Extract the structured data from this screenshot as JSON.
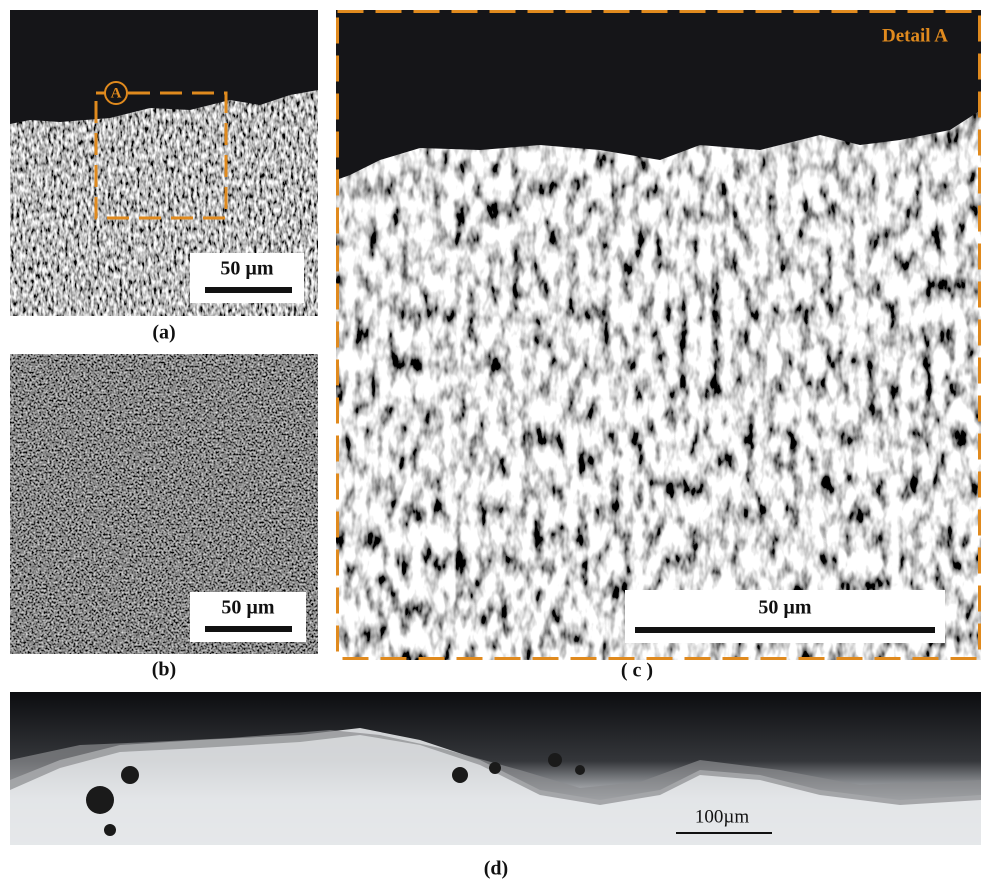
{
  "panels": {
    "a": {
      "label": "(a)",
      "marker": "A",
      "scale_bar": "50 µm"
    },
    "b": {
      "label": "(b)",
      "scale_bar": "50 µm"
    },
    "c": {
      "label": "( c )",
      "title": "Detail A",
      "scale_bar": "50 µm"
    },
    "d": {
      "label": "(d)",
      "scale_bar": "100µm"
    }
  }
}
